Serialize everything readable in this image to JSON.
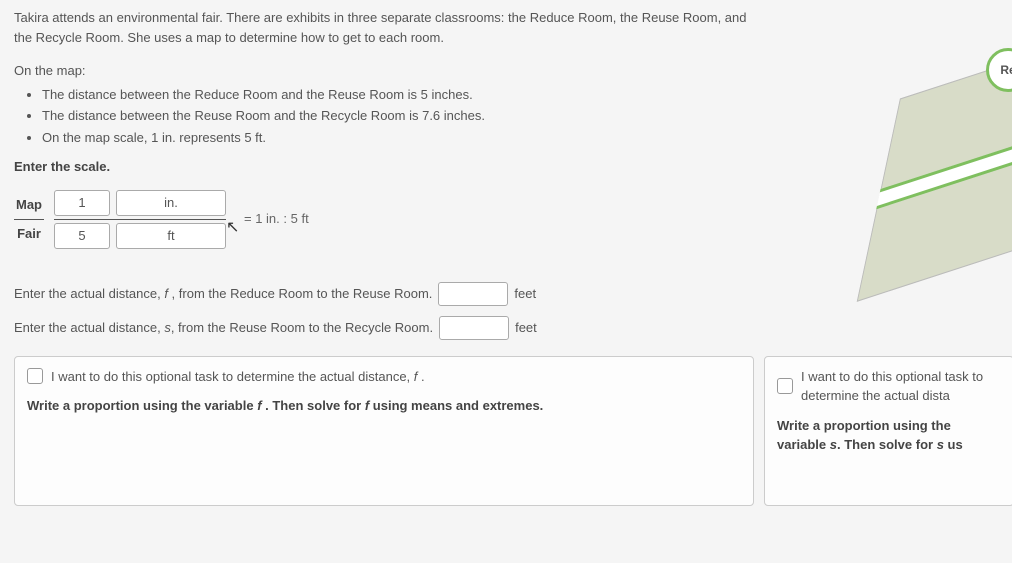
{
  "intro": "Takira attends an environmental fair. There are exhibits in three separate classrooms: the Reduce Room, the Reuse Room, and the Recycle Room. She uses a map to determine how to get to each room.",
  "map_header": "On the map:",
  "bullets": [
    "The distance between the Reduce Room and the Reuse Room is 5 inches.",
    "The distance between the Reuse Room and the Recycle Room is 7.6 inches.",
    "On the map scale, 1 in. represents 5 ft."
  ],
  "enter_scale": "Enter the scale.",
  "fraction": {
    "top_label": "Map",
    "bottom_label": "Fair"
  },
  "scale_inputs": {
    "top_value": "1",
    "top_unit": "in.",
    "bottom_value": "5",
    "bottom_unit": "ft"
  },
  "ratio": "= 1 in. : 5 ft",
  "dist_f": {
    "prefix": "Enter the actual distance, ",
    "var": "f",
    "suffix": " , from the Reduce Room to the Reuse Room.",
    "unit": "feet"
  },
  "dist_s": {
    "prefix": "Enter the actual distance, ",
    "var": "s",
    "suffix": ", from the Reuse Room to the Recycle Room.",
    "unit": "feet"
  },
  "panel_left": {
    "checkbox_label_prefix": "I want to do this optional task to determine the actual distance, ",
    "checkbox_var": "f",
    "checkbox_suffix": " .",
    "instruction_prefix": "Write a proportion using the variable ",
    "var1": "f",
    "instruction_mid": " . Then solve for ",
    "var2": "f",
    "instruction_suffix": " using means and extremes."
  },
  "panel_right": {
    "checkbox_label": "I want to do this optional task to determine the actual dista",
    "instruction_prefix": "Write a proportion using the variable ",
    "var": "s",
    "instruction_mid": ". Then solve for ",
    "var2": "s",
    "instruction_suffix": " us"
  },
  "badge": "Re",
  "colors": {
    "text": "#555555",
    "bold_text": "#444444",
    "border": "#aaaaaa",
    "panel_border": "#cccccc",
    "green": "#7fbf5f",
    "ground": "#d8dcc8"
  }
}
